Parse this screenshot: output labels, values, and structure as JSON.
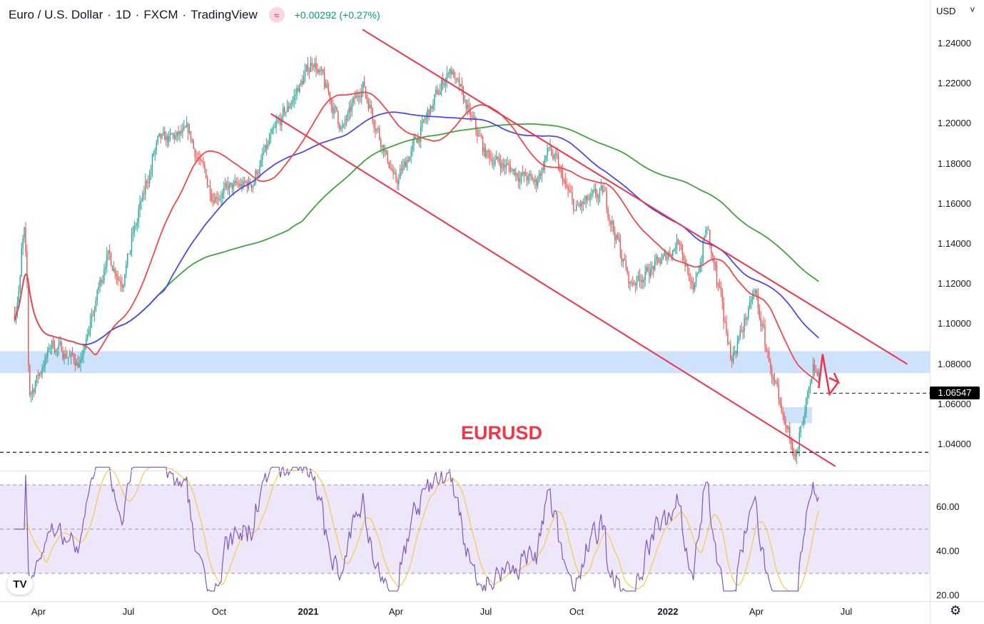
{
  "header": {
    "symbol": "Euro / U.S. Dollar",
    "interval": "1D",
    "broker": "FXCM",
    "platform": "TradingView",
    "change": "+0.00292 (+0.27%)",
    "indicator_icon": "≈"
  },
  "currency": {
    "label": "USD",
    "caret": "˅"
  },
  "annotation": "EURUSD",
  "last_price": "1.06547",
  "price_axis": [
    "1.24000",
    "1.22000",
    "1.20000",
    "1.18000",
    "1.16000",
    "1.14000",
    "1.12000",
    "1.10000",
    "1.08000",
    "1.06000",
    "1.04000"
  ],
  "rsi_axis": [
    "60.00",
    "40.00",
    "20.00"
  ],
  "time_axis": [
    {
      "label": "Apr",
      "bold": false
    },
    {
      "label": "Jul",
      "bold": false
    },
    {
      "label": "Oct",
      "bold": false
    },
    {
      "label": "2021",
      "bold": true
    },
    {
      "label": "Apr",
      "bold": false
    },
    {
      "label": "Jul",
      "bold": false
    },
    {
      "label": "Oct",
      "bold": false
    },
    {
      "label": "2022",
      "bold": true
    },
    {
      "label": "Apr",
      "bold": false
    },
    {
      "label": "Jul",
      "bold": false
    }
  ],
  "logo_text": "TV",
  "settings_icon": "gear-icon",
  "colors": {
    "up": "#26a69a",
    "down": "#ef5350",
    "ma_fast": "#f04848",
    "ma_mid": "#4a4ae8",
    "ma_slow": "#3fa33f",
    "channel": "#f0334a",
    "zone": "#cfe2fb",
    "rsi": "#7e57c2",
    "rsi_ma": "#f7c948",
    "rsi_band": "#ede7f9"
  },
  "chart_data": {
    "type": "candlestick",
    "title": "Euro / U.S. Dollar · 1D · FXCM",
    "price_range": [
      1.03,
      1.245
    ],
    "rsi_range": [
      15,
      75
    ],
    "rsi_levels": [
      70,
      50,
      30
    ],
    "resistance_zone": [
      1.0755,
      1.0865
    ],
    "support_zone": [
      1.0505,
      1.0585
    ],
    "support_line": 1.036,
    "last_price": 1.06547,
    "price_path": [
      [
        "2020-03-09",
        1.105
      ],
      [
        "2020-03-18",
        1.145
      ],
      [
        "2020-03-24",
        1.065
      ],
      [
        "2020-04-15",
        1.09
      ],
      [
        "2020-05-15",
        1.08
      ],
      [
        "2020-06-10",
        1.135
      ],
      [
        "2020-06-25",
        1.122
      ],
      [
        "2020-07-31",
        1.19
      ],
      [
        "2020-09-01",
        1.195
      ],
      [
        "2020-09-25",
        1.165
      ],
      [
        "2020-11-04",
        1.17
      ],
      [
        "2020-11-24",
        1.192
      ],
      [
        "2021-01-06",
        1.232
      ],
      [
        "2021-02-05",
        1.197
      ],
      [
        "2021-02-25",
        1.22
      ],
      [
        "2021-03-31",
        1.17
      ],
      [
        "2021-05-25",
        1.228
      ],
      [
        "2021-06-30",
        1.185
      ],
      [
        "2021-08-20",
        1.17
      ],
      [
        "2021-09-03",
        1.188
      ],
      [
        "2021-09-29",
        1.157
      ],
      [
        "2021-10-28",
        1.165
      ],
      [
        "2021-11-24",
        1.12
      ],
      [
        "2021-12-28",
        1.132
      ],
      [
        "2022-01-14",
        1.143
      ],
      [
        "2022-01-27",
        1.114
      ],
      [
        "2022-02-10",
        1.148
      ],
      [
        "2022-03-07",
        1.083
      ],
      [
        "2022-03-31",
        1.115
      ],
      [
        "2022-04-28",
        1.05
      ],
      [
        "2022-05-13",
        1.037
      ],
      [
        "2022-05-30",
        1.075
      ],
      [
        "2022-06-03",
        1.073
      ]
    ],
    "channel_upper": [
      [
        "2021-02-25",
        1.247
      ],
      [
        "2022-09-01",
        1.08
      ]
    ],
    "channel_lower": [
      [
        "2020-11-24",
        1.205
      ],
      [
        "2022-06-20",
        1.029
      ]
    ],
    "projection": [
      [
        "2022-06-03",
        1.068
      ],
      [
        "2022-06-07",
        1.085
      ],
      [
        "2022-06-14",
        1.065
      ],
      [
        "2022-06-23",
        1.071
      ]
    ]
  }
}
